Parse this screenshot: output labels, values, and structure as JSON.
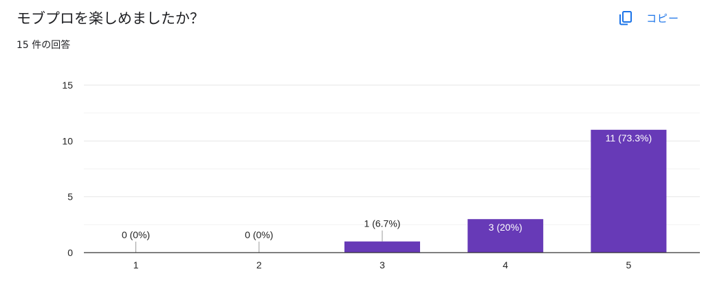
{
  "question": {
    "title": "モブプロを楽しめましたか？",
    "response_count": "15 件の回答"
  },
  "toolbar": {
    "copy_label": "コピー",
    "copy_icon": "copy-icon"
  },
  "colors": {
    "bar": "#673ab7",
    "accent": "#1a73e8",
    "grid": "#e6e6e6",
    "axis": "#333333"
  },
  "chart_data": {
    "type": "bar",
    "categories": [
      "1",
      "2",
      "3",
      "4",
      "5"
    ],
    "values": [
      0,
      0,
      1,
      3,
      11
    ],
    "data_labels": [
      "0 (0%)",
      "0 (0%)",
      "1 (6.7%)",
      "3 (20%)",
      "11 (73.3%)"
    ],
    "ylim": [
      0,
      15
    ],
    "yticks": [
      0,
      5,
      10,
      15
    ],
    "grid": true,
    "title": "",
    "xlabel": "",
    "ylabel": ""
  }
}
